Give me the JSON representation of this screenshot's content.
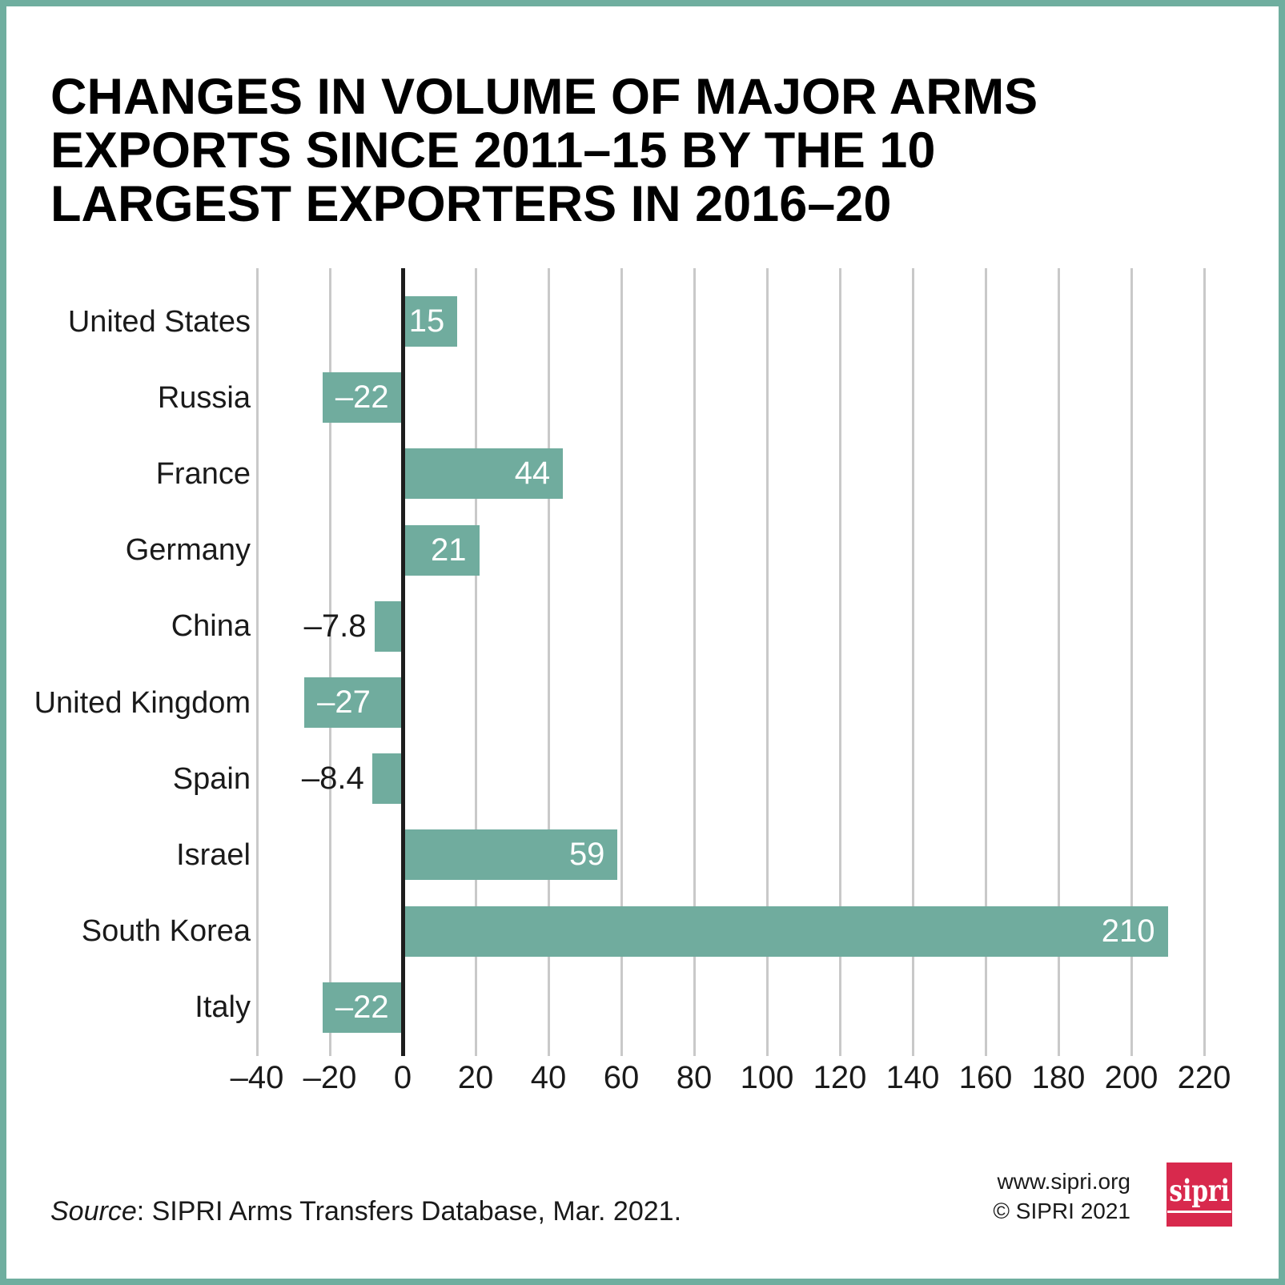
{
  "title": "CHANGES IN VOLUME OF MAJOR ARMS\nEXPORTS SINCE 2011–15 BY THE 10\nLARGEST EXPORTERS IN 2016–20",
  "chart_data": {
    "type": "bar",
    "orientation": "horizontal",
    "title": "Changes in volume of major arms exports since 2011-15 by the 10 largest exporters in 2016-20",
    "categories": [
      "United States",
      "Russia",
      "France",
      "Germany",
      "China",
      "United Kingdom",
      "Spain",
      "Israel",
      "South Korea",
      "Italy"
    ],
    "values": [
      15,
      -22,
      44,
      21,
      -7.8,
      -27,
      -8.4,
      59,
      210,
      -22
    ],
    "value_labels": [
      "15",
      "–22",
      "44",
      "21",
      "–7.8",
      "–27",
      "–8.4",
      "59",
      "210",
      "–22"
    ],
    "xlim": [
      -40,
      220
    ],
    "ticks": [
      -40,
      -20,
      0,
      20,
      40,
      60,
      80,
      100,
      120,
      140,
      160,
      180,
      200,
      220
    ],
    "tick_labels": [
      "–40",
      "–20",
      "0",
      "20",
      "40",
      "60",
      "80",
      "100",
      "120",
      "140",
      "160",
      "180",
      "200",
      "220"
    ],
    "grid": true,
    "legend": "none",
    "bar_color": "#70ac9e",
    "gridline_color": "#c9c9c9",
    "zero_axis_color": "#1d1d1d"
  },
  "footer": {
    "source_prefix": "Source",
    "source_rest": ": SIPRI Arms Transfers Database, Mar. 2021.",
    "website": "www.sipri.org",
    "copyright": "© SIPRI 2021",
    "logo_text": "sipri"
  },
  "colors": {
    "frame_teal": "#6fae9f",
    "logo_red": "#d8294d"
  }
}
